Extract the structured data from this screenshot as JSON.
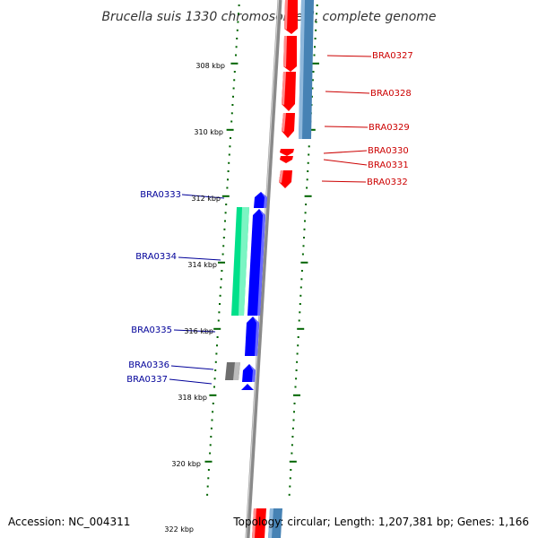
{
  "title": "Brucella suis 1330 chromosome II, complete genome",
  "footer": {
    "accession": "Accession: NC_004311",
    "topology": "Topology: circular; Length: 1,207,381 bp; Genes: 1,166"
  },
  "colors": {
    "forward_gene": "#ff0000",
    "reverse_gene": "#0000ff",
    "forward_rna": "#4682b4",
    "reverse_rna": "#00fa9a",
    "pseudo_gene": "#696969",
    "backbone": "#808080",
    "tick": "#006400",
    "forward_label": "#cc0000",
    "reverse_label": "#000099"
  },
  "ticks": [
    {
      "kbp": 308,
      "label": "308 kbp"
    },
    {
      "kbp": 310,
      "label": "310 kbp"
    },
    {
      "kbp": 312,
      "label": "312 kbp"
    },
    {
      "kbp": 314,
      "label": "314 kbp"
    },
    {
      "kbp": 316,
      "label": "316 kbp"
    },
    {
      "kbp": 318,
      "label": "318 kbp"
    },
    {
      "kbp": 320,
      "label": "320 kbp"
    },
    {
      "kbp": 322,
      "label": "322 kbp"
    }
  ],
  "forward_labels": [
    "BRA0327",
    "BRA0328",
    "BRA0329",
    "BRA0330",
    "BRA0331",
    "BRA0332"
  ],
  "reverse_labels": [
    "BRA0333",
    "BRA0334",
    "BRA0335",
    "BRA0336",
    "BRA0337"
  ]
}
